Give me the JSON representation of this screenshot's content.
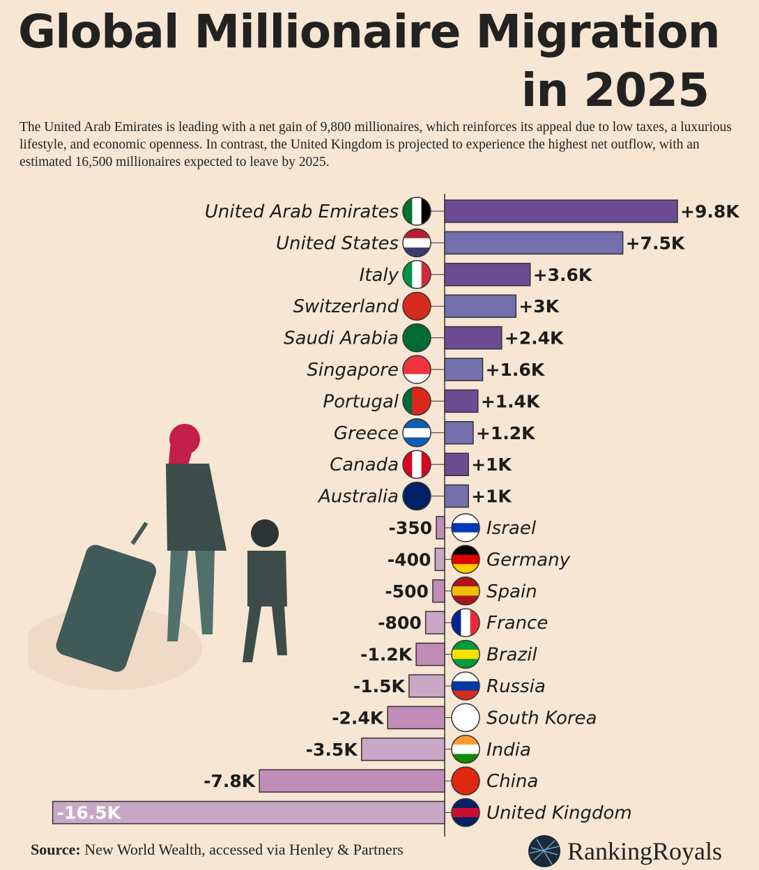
{
  "title_line1": "Global Millionaire Migration",
  "title_line2": "in 2025",
  "description": "The United Arab Emirates is leading with a net gain of 9,800 millionaires, which reinforces its appeal due to low taxes, a luxurious lifestyle, and economic openness. In contrast, the United Kingdom is projected to experience the highest net outflow, with an estimated 16,500 millionaires expected to leave by 2025.",
  "source_label": "Source:",
  "source_text": "New World Wealth, accessed via Henley & Partners",
  "brand": "RankingRoyals",
  "colors": {
    "pos_a": "#6c4b93",
    "pos_b": "#7470ad",
    "neg_a": "#c9a8c7",
    "neg_b": "#c08cb8",
    "background": "#f7e6d3"
  },
  "chart_data": {
    "type": "bar",
    "orientation": "horizontal",
    "title": "Global Millionaire Migration in 2025",
    "unit": "net millionaires",
    "categories": [
      "United Arab Emirates",
      "United States",
      "Italy",
      "Switzerland",
      "Saudi Arabia",
      "Singapore",
      "Portugal",
      "Greece",
      "Canada",
      "Australia",
      "Israel",
      "Germany",
      "Spain",
      "France",
      "Brazil",
      "Russia",
      "South Korea",
      "India",
      "China",
      "United Kingdom"
    ],
    "values": [
      9800,
      7500,
      3600,
      3000,
      2400,
      1600,
      1400,
      1200,
      1000,
      1000,
      -350,
      -400,
      -500,
      -800,
      -1200,
      -1500,
      -2400,
      -3500,
      -7800,
      -16500
    ],
    "labels": [
      "+9.8K",
      "+7.5K",
      "+3.6K",
      "+3K",
      "+2.4K",
      "+1.6K",
      "+1.4K",
      "+1.2K",
      "+1K",
      "+1K",
      "-350",
      "-400",
      "-500",
      "-800",
      "-1.2K",
      "-1.5K",
      "-2.4K",
      "-3.5K",
      "-7.8K",
      "-16.5K"
    ],
    "flags": [
      [
        "#00732f",
        "#ffffff",
        "#000000"
      ],
      [
        "#b22234",
        "#ffffff",
        "#3c3b6e"
      ],
      [
        "#009246",
        "#ffffff",
        "#ce2b37"
      ],
      [
        "#d52b1e",
        "#d52b1e",
        "#d52b1e"
      ],
      [
        "#006c35",
        "#006c35",
        "#006c35"
      ],
      [
        "#ef3340",
        "#ef3340",
        "#ffffff"
      ],
      [
        "#046a38",
        "#da291c",
        "#da291c"
      ],
      [
        "#0d5eaf",
        "#ffffff",
        "#0d5eaf"
      ],
      [
        "#d80621",
        "#ffffff",
        "#d80621"
      ],
      [
        "#012169",
        "#012169",
        "#012169"
      ],
      [
        "#ffffff",
        "#0038b8",
        "#ffffff"
      ],
      [
        "#000000",
        "#dd0000",
        "#ffce00"
      ],
      [
        "#aa151b",
        "#f1bf00",
        "#aa151b"
      ],
      [
        "#002395",
        "#ffffff",
        "#ed2939"
      ],
      [
        "#009c3b",
        "#ffdf00",
        "#009c3b"
      ],
      [
        "#ffffff",
        "#0039a6",
        "#d52b1e"
      ],
      [
        "#ffffff",
        "#ffffff",
        "#ffffff"
      ],
      [
        "#ff9933",
        "#ffffff",
        "#138808"
      ],
      [
        "#de2910",
        "#de2910",
        "#de2910"
      ],
      [
        "#012169",
        "#c8102e",
        "#012169"
      ]
    ],
    "flag_dir": [
      "v",
      "h",
      "v",
      "h",
      "h",
      "h",
      "v",
      "h",
      "v",
      "h",
      "h",
      "h",
      "h",
      "v",
      "h",
      "h",
      "h",
      "h",
      "h",
      "h"
    ],
    "xlim": [
      -16500,
      9800
    ],
    "grid": false
  }
}
